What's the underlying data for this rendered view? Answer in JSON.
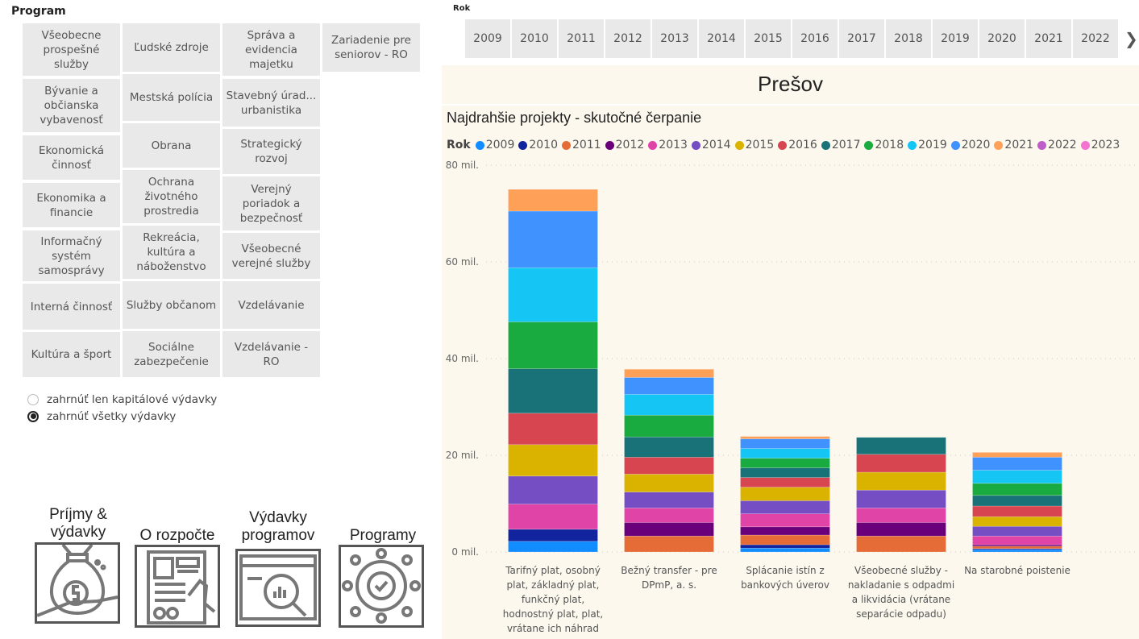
{
  "program_slicer": {
    "title": "Program",
    "columns": [
      [
        "Všeobecne prospešné služby",
        "Bývanie a občianska vybavenosť",
        "Ekonomická činnosť",
        "Ekonomika a financie",
        "Informačný systém samosprávy",
        "Interná činnosť",
        "Kultúra a šport"
      ],
      [
        "Ľudské zdroje",
        "Mestská polícia",
        "Obrana",
        "Ochrana životného prostredia",
        "Rekreácia, kultúra a náboženstvo",
        "Služby občanom",
        "Sociálne zabezpečenie"
      ],
      [
        "Správa a evidencia majetku",
        "Stavebný úrad... urbanistika",
        "Strategický rozvoj",
        "Verejný poriadok a bezpečnosť",
        "Všeobecné verejné služby",
        "Vzdelávanie",
        "Vzdelávanie - RO"
      ],
      [
        "Zariadenie pre seniorov - RO"
      ]
    ]
  },
  "expense_filter": {
    "options": [
      {
        "label": "zahrnúť len kapitálové výdavky",
        "selected": false
      },
      {
        "label": "zahrnúť všetky výdavky",
        "selected": true
      }
    ]
  },
  "nav_buttons": [
    {
      "label": "Príjmy & výdavky",
      "icon": "money-bag-hand-icon"
    },
    {
      "label": "O rozpočte",
      "icon": "document-hand-icon"
    },
    {
      "label": "Výdavky programov",
      "icon": "browser-magnifier-chart-icon"
    },
    {
      "label": "Programy",
      "icon": "gear-network-icon"
    }
  ],
  "year_slicer": {
    "title": "Rok",
    "years": [
      "2009",
      "2010",
      "2011",
      "2012",
      "2013",
      "2014",
      "2015",
      "2016",
      "2017",
      "2018",
      "2019",
      "2020",
      "2021",
      "2022"
    ],
    "next_icon": "chevron-right-icon"
  },
  "city": {
    "title": "Prešov"
  },
  "chart_data": {
    "type": "bar",
    "stacked": true,
    "title": "Najdrahšie projekty - skutočné čerpanie",
    "legend_title": "Rok",
    "legend_position": "top-left",
    "xlabel": "",
    "ylabel": "",
    "ylim": [
      0,
      80
    ],
    "y_unit": "mil.",
    "y_ticks": [
      0,
      20,
      40,
      60,
      80
    ],
    "y_tick_labels": [
      "0 mil.",
      "20 mil.",
      "40 mil.",
      "60 mil.",
      "80 mil."
    ],
    "grid": true,
    "categories": [
      "Tarifný plat, osobný plat, základný plat, funkčný plat, hodnostný plat, plat, vrátane ich náhrad",
      "Bežný transfer - pre DPmP, a. s.",
      "Splácanie istín z bankových úverov",
      "Všeobecné služby - nakladanie s odpadmi a likvidácia (vrátane separácie odpadu)",
      "Na starobné poistenie"
    ],
    "category_label_lines": [
      [
        "Tarifný plat, osobný",
        "plat, základný plat,",
        "funkčný plat,",
        "hodnostný plat, plat,",
        "vrátane ich náhrad"
      ],
      [
        "Bežný transfer - pre",
        "DPmP, a. s."
      ],
      [
        "Splácanie istín z",
        "bankových úverov"
      ],
      [
        "Všeobecné služby -",
        "nakladanie s odpadmi",
        "a likvidácia (vrátane",
        "separácie odpadu)"
      ],
      [
        "Na starobné poistenie"
      ]
    ],
    "series": [
      {
        "name": "2009",
        "color": "#118DFF",
        "values": [
          2.2,
          0,
          0.8,
          0,
          0.5
        ]
      },
      {
        "name": "2010",
        "color": "#12239E",
        "values": [
          2.5,
          0,
          0.7,
          0,
          0.2
        ]
      },
      {
        "name": "2011",
        "color": "#E66C37",
        "values": [
          0,
          3.3,
          2.0,
          3.3,
          0.5
        ]
      },
      {
        "name": "2012",
        "color": "#6B007B",
        "values": [
          0,
          2.8,
          1.7,
          2.8,
          0.3
        ]
      },
      {
        "name": "2013",
        "color": "#E044A7",
        "values": [
          5.2,
          3.0,
          2.7,
          3.0,
          1.8
        ]
      },
      {
        "name": "2014",
        "color": "#744EC2",
        "values": [
          5.8,
          3.3,
          2.7,
          3.7,
          2.0
        ]
      },
      {
        "name": "2015",
        "color": "#D9B300",
        "values": [
          6.5,
          3.7,
          2.8,
          3.7,
          2.0
        ]
      },
      {
        "name": "2016",
        "color": "#D64550",
        "values": [
          6.5,
          3.5,
          2.0,
          3.7,
          2.2
        ]
      },
      {
        "name": "2017",
        "color": "#197278",
        "values": [
          9.2,
          4.2,
          2.0,
          3.5,
          2.2
        ]
      },
      {
        "name": "2018",
        "color": "#1AAB40",
        "values": [
          9.7,
          4.5,
          2.0,
          0,
          2.5
        ]
      },
      {
        "name": "2019",
        "color": "#15C6F4",
        "values": [
          11.2,
          4.3,
          2.0,
          0,
          2.7
        ]
      },
      {
        "name": "2020",
        "color": "#4092FF",
        "values": [
          11.7,
          3.5,
          2.0,
          0,
          2.7
        ]
      },
      {
        "name": "2021",
        "color": "#FFA058",
        "values": [
          4.5,
          1.7,
          0.5,
          0,
          1.0
        ]
      },
      {
        "name": "2022",
        "color": "#BE5DC9",
        "values": [
          0,
          0,
          0,
          0,
          0
        ]
      },
      {
        "name": "2023",
        "color": "#F472D0",
        "values": [
          0,
          0,
          0,
          0,
          0
        ]
      }
    ]
  }
}
